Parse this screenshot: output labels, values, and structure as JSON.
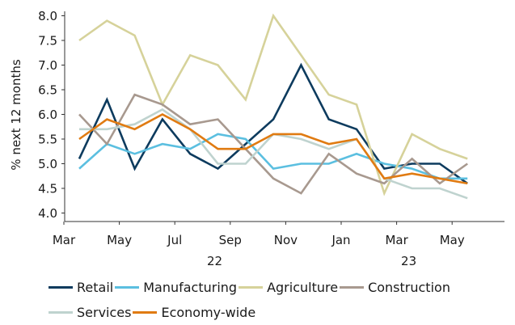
{
  "chart_data": {
    "type": "line",
    "ylabel": "% next 12 months",
    "xlabel": "",
    "ylim": [
      4.0,
      8.0
    ],
    "yticks": [
      "4.0",
      "4.5",
      "5.0",
      "5.5",
      "6.0",
      "6.5",
      "7.0",
      "7.5",
      "8.0"
    ],
    "x_tick_labels": [
      "Mar",
      "May",
      "Jul",
      "Sep",
      "Nov",
      "Jan",
      "Mar",
      "May"
    ],
    "x_group_labels": [
      "22",
      "23"
    ],
    "grid": false,
    "legend_position": "bottom",
    "categories": [
      "Mar 22",
      "Apr 22",
      "May 22",
      "Jun 22",
      "Jul 22",
      "Aug 22",
      "Sep 22",
      "Oct 22",
      "Nov 22",
      "Dec 22",
      "Jan 23",
      "Feb 23",
      "Mar 23",
      "Apr 23",
      "May 23",
      "Jun 23"
    ],
    "series": [
      {
        "name": "Retail",
        "color": "#0d3b5e",
        "values": [
          5.1,
          6.3,
          4.9,
          5.9,
          5.2,
          4.9,
          5.4,
          5.9,
          7.0,
          5.9,
          5.7,
          4.9,
          5.0,
          5.0,
          4.6,
          null
        ]
      },
      {
        "name": "Manufacturing",
        "color": "#5bbfe0",
        "values": [
          4.9,
          5.4,
          5.2,
          5.4,
          5.3,
          5.6,
          5.5,
          4.9,
          5.0,
          5.0,
          5.2,
          5.0,
          4.9,
          4.7,
          4.7,
          null
        ]
      },
      {
        "name": "Agriculture",
        "color": "#d6d29a",
        "values": [
          7.5,
          7.9,
          7.6,
          6.2,
          7.2,
          7.0,
          6.3,
          8.0,
          7.2,
          6.4,
          6.2,
          4.4,
          5.6,
          5.3,
          5.1,
          null
        ]
      },
      {
        "name": "Construction",
        "color": "#a8998f",
        "values": [
          6.0,
          5.4,
          6.4,
          6.2,
          5.8,
          5.9,
          5.3,
          4.7,
          4.4,
          5.2,
          4.8,
          4.6,
          5.1,
          4.6,
          5.0,
          null
        ]
      },
      {
        "name": "Services",
        "color": "#bfd3cf",
        "values": [
          5.7,
          5.7,
          5.8,
          6.1,
          5.7,
          5.0,
          5.0,
          5.6,
          5.5,
          5.3,
          5.5,
          4.7,
          4.5,
          4.5,
          4.3,
          null
        ]
      },
      {
        "name": "Economy-wide",
        "color": "#e07b12",
        "values": [
          5.5,
          5.9,
          5.7,
          6.0,
          5.7,
          5.3,
          5.3,
          5.6,
          5.6,
          5.4,
          5.5,
          4.7,
          4.8,
          4.7,
          4.6,
          null
        ]
      }
    ]
  }
}
